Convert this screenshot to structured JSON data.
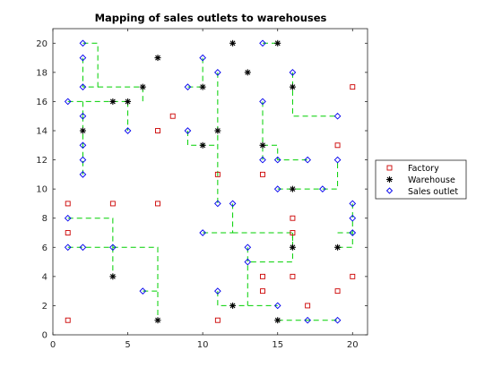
{
  "chart_data": {
    "type": "scatter",
    "title": "Mapping of sales outlets to warehouses",
    "xlim": [
      0,
      21
    ],
    "ylim": [
      0,
      21
    ],
    "x_ticks": [
      "0",
      "5",
      "10",
      "15",
      "20"
    ],
    "y_ticks": [
      "0",
      "2",
      "4",
      "6",
      "8",
      "10",
      "12",
      "14",
      "16",
      "18",
      "20"
    ],
    "legend": {
      "placement": "right-outside",
      "entries": [
        {
          "label": "Factory",
          "marker": "square",
          "color": "#cc0000"
        },
        {
          "label": "Warehouse",
          "marker": "asterisk",
          "color": "#000000"
        },
        {
          "label": "Sales outlet",
          "marker": "diamond",
          "color": "#0000ee"
        }
      ]
    },
    "route_color": "#00d000",
    "series": [
      {
        "name": "Factory",
        "points": [
          [
            1,
            9
          ],
          [
            1,
            7
          ],
          [
            1,
            1
          ],
          [
            4,
            9
          ],
          [
            7,
            14
          ],
          [
            7,
            9
          ],
          [
            8,
            15
          ],
          [
            11,
            11
          ],
          [
            11,
            1
          ],
          [
            14,
            11
          ],
          [
            14,
            4
          ],
          [
            14,
            3
          ],
          [
            16,
            8
          ],
          [
            16,
            7
          ],
          [
            16,
            4
          ],
          [
            17,
            2
          ],
          [
            19,
            13
          ],
          [
            19,
            3
          ],
          [
            20,
            17
          ],
          [
            20,
            4
          ]
        ]
      },
      {
        "name": "Warehouse",
        "points": [
          [
            2,
            14
          ],
          [
            4,
            16
          ],
          [
            4,
            4
          ],
          [
            5,
            16
          ],
          [
            6,
            17
          ],
          [
            7,
            19
          ],
          [
            7,
            1
          ],
          [
            10,
            17
          ],
          [
            10,
            13
          ],
          [
            11,
            14
          ],
          [
            12,
            20
          ],
          [
            12,
            2
          ],
          [
            13,
            18
          ],
          [
            14,
            13
          ],
          [
            15,
            20
          ],
          [
            15,
            1
          ],
          [
            16,
            17
          ],
          [
            16,
            10
          ],
          [
            16,
            6
          ],
          [
            19,
            6
          ]
        ]
      },
      {
        "name": "Sales outlet",
        "points": [
          [
            1,
            16
          ],
          [
            1,
            8
          ],
          [
            1,
            6
          ],
          [
            2,
            20
          ],
          [
            2,
            19
          ],
          [
            2,
            17
          ],
          [
            2,
            15
          ],
          [
            2,
            13
          ],
          [
            2,
            12
          ],
          [
            2,
            11
          ],
          [
            2,
            6
          ],
          [
            4,
            6
          ],
          [
            5,
            14
          ],
          [
            6,
            3
          ],
          [
            9,
            17
          ],
          [
            9,
            14
          ],
          [
            10,
            19
          ],
          [
            10,
            7
          ],
          [
            11,
            18
          ],
          [
            11,
            9
          ],
          [
            11,
            3
          ],
          [
            12,
            9
          ],
          [
            13,
            6
          ],
          [
            13,
            5
          ],
          [
            14,
            20
          ],
          [
            14,
            16
          ],
          [
            14,
            12
          ],
          [
            15,
            12
          ],
          [
            15,
            10
          ],
          [
            15,
            2
          ],
          [
            16,
            18
          ],
          [
            17,
            12
          ],
          [
            17,
            1
          ],
          [
            18,
            10
          ],
          [
            19,
            15
          ],
          [
            19,
            12
          ],
          [
            19,
            1
          ],
          [
            20,
            9
          ],
          [
            20,
            8
          ],
          [
            20,
            7
          ]
        ]
      }
    ],
    "routes": [
      [
        [
          2,
          20
        ],
        [
          3,
          20
        ],
        [
          3,
          17
        ],
        [
          2,
          17
        ]
      ],
      [
        [
          2,
          19
        ],
        [
          2,
          17
        ]
      ],
      [
        [
          3,
          17
        ],
        [
          6,
          17
        ]
      ],
      [
        [
          1,
          16
        ],
        [
          5,
          16
        ]
      ],
      [
        [
          2,
          16
        ],
        [
          2,
          15
        ]
      ],
      [
        [
          2,
          15
        ],
        [
          2,
          11
        ]
      ],
      [
        [
          5,
          16
        ],
        [
          5,
          14
        ]
      ],
      [
        [
          6,
          17
        ],
        [
          6,
          16
        ]
      ],
      [
        [
          1,
          8
        ],
        [
          4,
          8
        ],
        [
          4,
          6
        ]
      ],
      [
        [
          1,
          6
        ],
        [
          7,
          6
        ],
        [
          7,
          1
        ]
      ],
      [
        [
          4,
          6
        ],
        [
          4,
          4
        ]
      ],
      [
        [
          6,
          3
        ],
        [
          7,
          3
        ]
      ],
      [
        [
          9,
          17
        ],
        [
          10,
          17
        ]
      ],
      [
        [
          10,
          19
        ],
        [
          10,
          17
        ]
      ],
      [
        [
          11,
          18
        ],
        [
          11,
          9
        ]
      ],
      [
        [
          9,
          14
        ],
        [
          9,
          13
        ],
        [
          11,
          13
        ]
      ],
      [
        [
          10,
          7
        ],
        [
          12,
          7
        ],
        [
          12,
          9
        ]
      ],
      [
        [
          12,
          7
        ],
        [
          16,
          7
        ],
        [
          16,
          5
        ],
        [
          13,
          5
        ]
      ],
      [
        [
          13,
          6
        ],
        [
          13,
          5
        ],
        [
          13,
          2
        ]
      ],
      [
        [
          11,
          3
        ],
        [
          11,
          2
        ],
        [
          15,
          2
        ]
      ],
      [
        [
          14,
          20
        ],
        [
          15,
          20
        ]
      ],
      [
        [
          14,
          16
        ],
        [
          14,
          12
        ]
      ],
      [
        [
          14,
          13
        ],
        [
          15,
          13
        ],
        [
          15,
          12
        ],
        [
          17,
          12
        ]
      ],
      [
        [
          15,
          10
        ],
        [
          19,
          10
        ],
        [
          19,
          12
        ]
      ],
      [
        [
          16,
          18
        ],
        [
          16,
          15
        ],
        [
          19,
          15
        ]
      ],
      [
        [
          16,
          7
        ],
        [
          16,
          6
        ]
      ],
      [
        [
          19,
          6
        ],
        [
          20,
          6
        ],
        [
          20,
          9
        ]
      ],
      [
        [
          19,
          7
        ],
        [
          20,
          7
        ]
      ],
      [
        [
          15,
          1
        ],
        [
          19,
          1
        ]
      ]
    ]
  }
}
